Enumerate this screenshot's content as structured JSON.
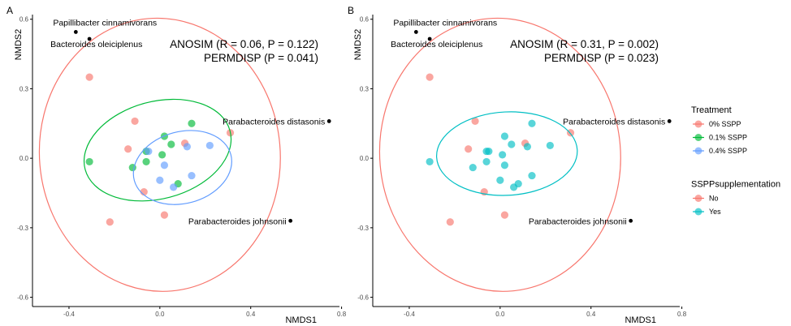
{
  "chart_data": [
    {
      "type": "scatter",
      "panel": "A",
      "xlabel": "NMDS1",
      "ylabel": "NMDS2",
      "xlim": [
        -0.55,
        0.78
      ],
      "ylim": [
        -0.64,
        0.62
      ],
      "xticks": [
        -0.4,
        0.0,
        0.4,
        0.8
      ],
      "yticks": [
        0.6,
        0.3,
        0.0,
        -0.3,
        -0.6
      ],
      "xtick_labels": [
        "-0.4",
        "0.0",
        "0.4",
        "0.8"
      ],
      "ytick_labels": [
        "0.6",
        "0.3",
        "0.0",
        "-0.3",
        "-0.6"
      ],
      "grid": false,
      "stats": [
        "ANOSIM (R = 0.06, P = 0.122)",
        "PERMDISP (P = 0.041)"
      ],
      "series": [
        {
          "name": "0% SSPP",
          "color": "#F8766D",
          "points": [
            [
              -0.31,
              0.35
            ],
            [
              -0.11,
              0.16
            ],
            [
              -0.14,
              0.04
            ],
            [
              -0.07,
              -0.145
            ],
            [
              0.11,
              0.065
            ],
            [
              0.31,
              0.11
            ],
            [
              -0.22,
              -0.275
            ],
            [
              0.02,
              -0.245
            ]
          ]
        },
        {
          "name": "0.1% SSPP",
          "color": "#00BA38",
          "points": [
            [
              -0.31,
              -0.015
            ],
            [
              0.02,
              0.095
            ],
            [
              0.14,
              0.15
            ],
            [
              -0.06,
              0.03
            ],
            [
              0.05,
              0.06
            ],
            [
              0.01,
              0.015
            ],
            [
              -0.12,
              -0.04
            ],
            [
              -0.06,
              -0.015
            ],
            [
              0.08,
              -0.11
            ]
          ]
        },
        {
          "name": "0.4% SSPP",
          "color": "#619CFF",
          "points": [
            [
              0.22,
              0.055
            ],
            [
              0.12,
              0.05
            ],
            [
              -0.05,
              0.03
            ],
            [
              0.02,
              -0.03
            ],
            [
              0.14,
              -0.075
            ],
            [
              0.0,
              -0.095
            ],
            [
              0.06,
              -0.125
            ]
          ]
        }
      ],
      "ellipses": [
        {
          "group": "0% SSPP",
          "color": "#F8766D",
          "center": [
            0.0,
            0.015
          ],
          "rx": 0.53,
          "ry": 0.59,
          "rotate_deg": -5
        },
        {
          "group": "0.1% SSPP",
          "color": "#00BA38",
          "center": [
            -0.01,
            0.035
          ],
          "rx": 0.33,
          "ry": 0.21,
          "rotate_deg": -15
        },
        {
          "group": "0.4% SSPP",
          "color": "#619CFF",
          "center": [
            0.1,
            -0.04
          ],
          "rx": 0.22,
          "ry": 0.155,
          "rotate_deg": -15
        }
      ],
      "species": [
        {
          "name": "Papillibacter cinnamivorans",
          "x": -0.37,
          "y": 0.545
        },
        {
          "name": "Bacteroides oleiciplenus",
          "x": -0.31,
          "y": 0.515
        },
        {
          "name": "Parabacteroides distasonis",
          "x": 0.745,
          "y": 0.16
        },
        {
          "name": "Parabacteroides johnsonii",
          "x": 0.575,
          "y": -0.27
        }
      ]
    },
    {
      "type": "scatter",
      "panel": "B",
      "xlabel": "NMDS1",
      "ylabel": "NMDS2",
      "xlim": [
        -0.55,
        0.78
      ],
      "ylim": [
        -0.64,
        0.62
      ],
      "xticks": [
        -0.4,
        0.0,
        0.4,
        0.8
      ],
      "yticks": [
        0.6,
        0.3,
        0.0,
        -0.3,
        -0.6
      ],
      "xtick_labels": [
        "-0.4",
        "0.0",
        "0.4",
        "0.8"
      ],
      "ytick_labels": [
        "0.6",
        "0.3",
        "0.0",
        "-0.3",
        "-0.6"
      ],
      "grid": false,
      "stats": [
        "ANOSIM (R = 0.31, P = 0.002)",
        "PERMDISP (P = 0.023)"
      ],
      "series": [
        {
          "name": "No",
          "color": "#F8766D",
          "points": [
            [
              -0.31,
              0.35
            ],
            [
              -0.11,
              0.16
            ],
            [
              -0.14,
              0.04
            ],
            [
              -0.07,
              -0.145
            ],
            [
              0.11,
              0.065
            ],
            [
              0.31,
              0.11
            ],
            [
              -0.22,
              -0.275
            ],
            [
              0.02,
              -0.245
            ]
          ]
        },
        {
          "name": "Yes",
          "color": "#00BFC4",
          "points": [
            [
              -0.31,
              -0.015
            ],
            [
              0.02,
              0.095
            ],
            [
              0.14,
              0.15
            ],
            [
              -0.06,
              0.03
            ],
            [
              0.05,
              0.06
            ],
            [
              0.01,
              0.015
            ],
            [
              -0.12,
              -0.04
            ],
            [
              -0.06,
              -0.015
            ],
            [
              0.08,
              -0.11
            ],
            [
              0.22,
              0.055
            ],
            [
              0.12,
              0.05
            ],
            [
              -0.05,
              0.03
            ],
            [
              0.02,
              -0.03
            ],
            [
              0.14,
              -0.075
            ],
            [
              0.0,
              -0.095
            ],
            [
              0.06,
              -0.125
            ]
          ]
        }
      ],
      "ellipses": [
        {
          "group": "No",
          "color": "#F8766D",
          "center": [
            0.0,
            0.015
          ],
          "rx": 0.53,
          "ry": 0.59,
          "rotate_deg": -5
        },
        {
          "group": "Yes",
          "color": "#00BFC4",
          "center": [
            0.03,
            0.02
          ],
          "rx": 0.31,
          "ry": 0.18,
          "rotate_deg": -3
        }
      ],
      "species": [
        {
          "name": "Papillibacter cinnamivorans",
          "x": -0.37,
          "y": 0.545
        },
        {
          "name": "Bacteroides oleiciplenus",
          "x": -0.31,
          "y": 0.515
        },
        {
          "name": "Parabacteroides distasonis",
          "x": 0.745,
          "y": 0.16
        },
        {
          "name": "Parabacteroides johnsonii",
          "x": 0.575,
          "y": -0.27
        }
      ]
    }
  ],
  "legends": [
    {
      "title": "Treatment",
      "items": [
        {
          "label": "0% SSPP",
          "color": "#F8766D"
        },
        {
          "label": "0.1% SSPP",
          "color": "#00BA38"
        },
        {
          "label": "0.4% SSPP",
          "color": "#619CFF"
        }
      ]
    },
    {
      "title": "SSPPsupplementation",
      "items": [
        {
          "label": "No",
          "color": "#F8766D"
        },
        {
          "label": "Yes",
          "color": "#00BFC4"
        }
      ]
    }
  ]
}
